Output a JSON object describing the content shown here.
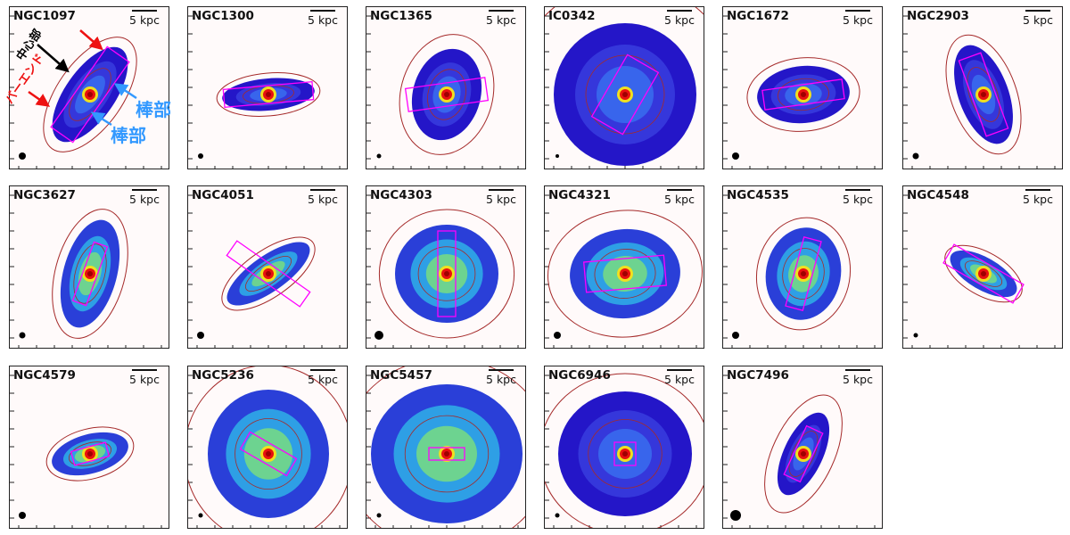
{
  "scale_label": "5 kpc",
  "colors": {
    "contour": "#a52a2a",
    "box": "#ff00ff",
    "low": "#2020c0",
    "mid": "#40d0a0",
    "high": "#e81010",
    "arrow_black": "#000000",
    "arrow_red": "#ee1111",
    "arrow_blue": "#3399ff"
  },
  "panels": [
    {
      "name": "NGC1097"
    },
    {
      "name": "NGC1300"
    },
    {
      "name": "NGC1365"
    },
    {
      "name": "IC0342"
    },
    {
      "name": "NGC1672"
    },
    {
      "name": "NGC2903"
    },
    {
      "name": "NGC3627"
    },
    {
      "name": "NGC4051"
    },
    {
      "name": "NGC4303"
    },
    {
      "name": "NGC4321"
    },
    {
      "name": "NGC4535"
    },
    {
      "name": "NGC4548"
    },
    {
      "name": "NGC4579"
    },
    {
      "name": "NGC5236"
    },
    {
      "name": "NGC5457"
    },
    {
      "name": "NGC6946"
    },
    {
      "name": "NGC7496"
    }
  ],
  "annotations": {
    "center": "中心部",
    "bar_end": "バーエンド",
    "bar_1": "棒部",
    "bar_2": "棒部"
  }
}
